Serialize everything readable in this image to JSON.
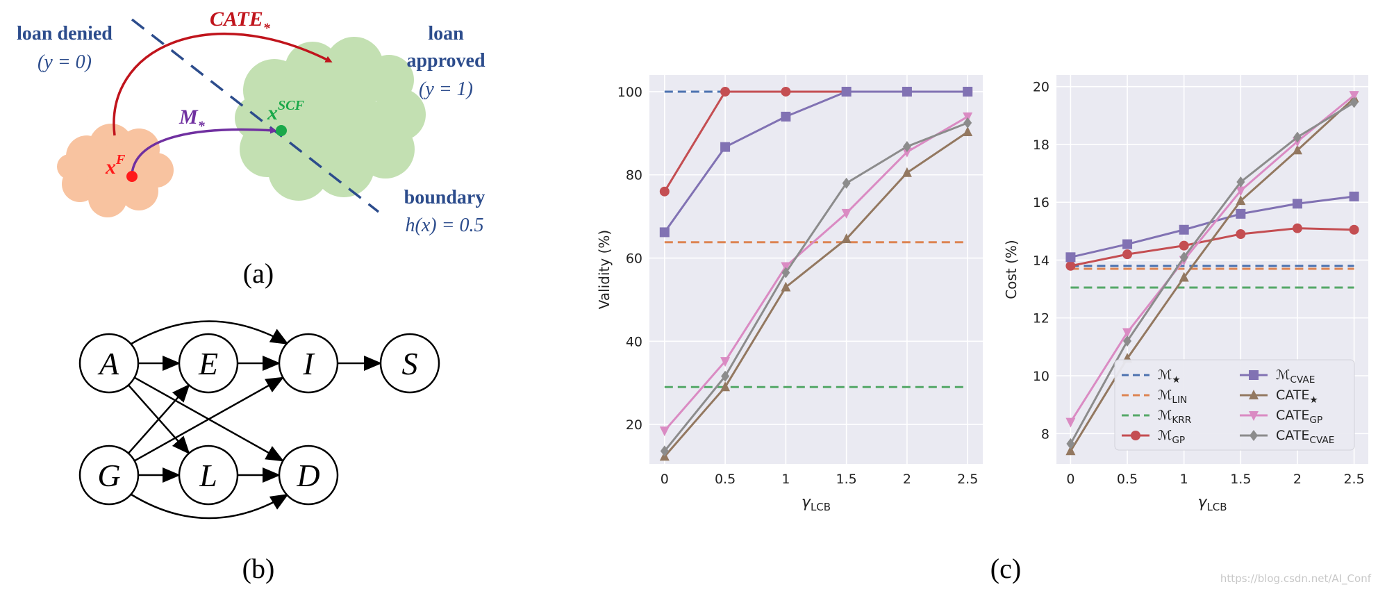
{
  "panel_a": {
    "caption": "(a)",
    "loan_denied": "loan denied",
    "denied_label": "(y = 0)",
    "loan": "loan",
    "approved": "approved",
    "approved_label": "(y = 1)",
    "cate_label": "CATE",
    "cate_sub": "*",
    "m_label": "M",
    "m_sub": "*",
    "xf_base": "x",
    "xf_sup": "F",
    "xscf_base": "x",
    "xscf_sup": "SCF",
    "boundary": "boundary",
    "boundary_eq": "h(x) = 0.5",
    "colors": {
      "denied": "#f8c3a0",
      "approved": "#c3e0b2",
      "text_blue": "#2c4c8c",
      "cate_red": "#c0141c",
      "m_purple": "#7030a0",
      "xf_red": "#ff1a1a",
      "xscf_green": "#1aa84a"
    }
  },
  "panel_b": {
    "caption": "(b)",
    "nodes": [
      "A",
      "E",
      "I",
      "S",
      "G",
      "L",
      "D"
    ]
  },
  "panel_c": {
    "caption": "(c)",
    "watermark": "https://blog.csdn.net/AI_Conf"
  },
  "chart_data": [
    {
      "type": "line",
      "ylabel": "Validity (%)",
      "xlabel": "γ_LCB",
      "x": [
        0,
        0.5,
        1,
        1.5,
        2,
        2.5
      ],
      "xticks": [
        "0",
        "0.5",
        "1",
        "1.5",
        "2",
        "2.5"
      ],
      "yticks": [
        20,
        40,
        60,
        80,
        100
      ],
      "ylim": [
        10.5,
        104
      ],
      "xlim": [
        -0.125,
        2.625
      ],
      "grid": true,
      "hlines": [
        {
          "name": "M★",
          "value": 100,
          "color": "#4c72b0"
        },
        {
          "name": "MLIN",
          "value": 63.8,
          "color": "#dd8452"
        },
        {
          "name": "MKRR",
          "value": 29.0,
          "color": "#55a868"
        }
      ],
      "series": [
        {
          "name": "MGP",
          "color": "#c44e52",
          "marker": "circle",
          "values": [
            76,
            100,
            100,
            100,
            100,
            100
          ]
        },
        {
          "name": "MCVAE",
          "color": "#8172b3",
          "marker": "square",
          "values": [
            66.2,
            86.7,
            94,
            100,
            100,
            100
          ]
        },
        {
          "name": "CATE★",
          "color": "#937860",
          "marker": "triangle-up",
          "values": [
            12.3,
            29,
            53,
            64.6,
            80.5,
            90.3
          ]
        },
        {
          "name": "CATEGP",
          "color": "#da8bc3",
          "marker": "triangle-down",
          "values": [
            18.5,
            35.2,
            58,
            70.8,
            85.5,
            94
          ]
        },
        {
          "name": "CATECVAE",
          "color": "#8c8c8c",
          "marker": "diamond",
          "values": [
            13.6,
            31.6,
            56.5,
            78,
            86.8,
            92.5
          ]
        }
      ]
    },
    {
      "type": "line",
      "ylabel": "Cost (%)",
      "xlabel": "γ_LCB",
      "x": [
        0,
        0.5,
        1,
        1.5,
        2,
        2.5
      ],
      "xticks": [
        "0",
        "0.5",
        "1",
        "1.5",
        "2",
        "2.5"
      ],
      "yticks": [
        8,
        10,
        12,
        14,
        16,
        18,
        20
      ],
      "ylim": [
        6.95,
        20.4
      ],
      "xlim": [
        -0.125,
        2.625
      ],
      "grid": true,
      "legend": "lower-right",
      "hlines": [
        {
          "name": "M★",
          "value": 13.8,
          "color": "#4c72b0"
        },
        {
          "name": "MLIN",
          "value": 13.7,
          "color": "#dd8452"
        },
        {
          "name": "MKRR",
          "value": 13.05,
          "color": "#55a868"
        }
      ],
      "series": [
        {
          "name": "MGP",
          "color": "#c44e52",
          "marker": "circle",
          "values": [
            13.8,
            14.2,
            14.5,
            14.9,
            15.1,
            15.05
          ]
        },
        {
          "name": "MCVAE",
          "color": "#8172b3",
          "marker": "square",
          "values": [
            14.1,
            14.55,
            15.05,
            15.6,
            15.95,
            16.2
          ]
        },
        {
          "name": "CATE★",
          "color": "#937860",
          "marker": "triangle-up",
          "values": [
            7.4,
            10.6,
            13.4,
            16.05,
            17.8,
            19.6
          ]
        },
        {
          "name": "CATEGP",
          "color": "#da8bc3",
          "marker": "triangle-down",
          "values": [
            8.4,
            11.5,
            14,
            16.4,
            18.1,
            19.7
          ]
        },
        {
          "name": "CATECVAE",
          "color": "#8c8c8c",
          "marker": "diamond",
          "values": [
            7.65,
            11.2,
            14.1,
            16.7,
            18.25,
            19.45
          ]
        }
      ]
    }
  ]
}
